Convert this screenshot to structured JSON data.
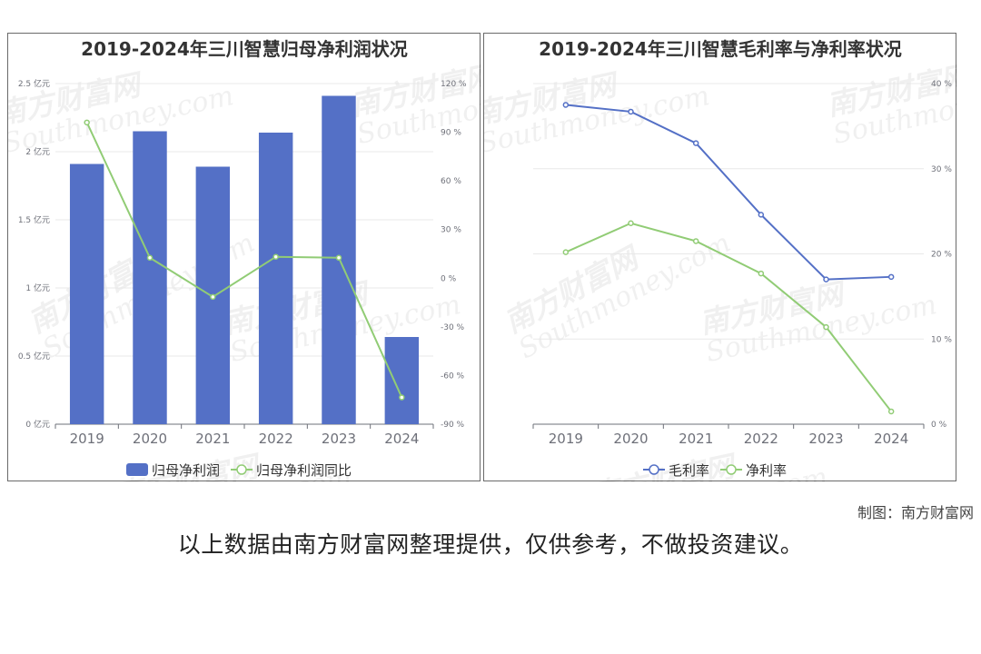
{
  "credit": "制图：南方财富网",
  "note": "以上数据由南方财富网整理提供，仅供参考，不做投资建议。",
  "watermark": {
    "cn": "南方财富网",
    "en": "Southmoney.com"
  },
  "colors": {
    "bar": "#5470c6",
    "line_green": "#91cc75",
    "line_blue": "#5470c6",
    "grid": "#e8e8e8",
    "axis": "#6e7079"
  },
  "chart_data": [
    {
      "type": "bar",
      "title": "2019-2024年三川智慧归母净利润状况",
      "categories": [
        "2019",
        "2020",
        "2021",
        "2022",
        "2023",
        "2024"
      ],
      "series": [
        {
          "name": "归母净利润",
          "type": "bar",
          "axis": "left",
          "values": [
            1.91,
            2.15,
            1.89,
            2.14,
            2.41,
            0.64
          ]
        },
        {
          "name": "归母净利润同比",
          "type": "line",
          "axis": "right",
          "values": [
            96,
            12.6,
            -11.5,
            13.2,
            12.6,
            -73.5
          ]
        }
      ],
      "y_left": {
        "ticks": [
          "0 亿元",
          "0.5 亿元",
          "1 亿元",
          "1.5 亿元",
          "2 亿元",
          "2.5 亿元"
        ],
        "ylim": [
          0,
          2.5
        ]
      },
      "y_right": {
        "ticks": [
          "-90 %",
          "-60 %",
          "-30 %",
          "0 %",
          "30 %",
          "60 %",
          "90 %",
          "120 %"
        ],
        "ylim": [
          -90,
          120
        ]
      },
      "legend": "bottom-center",
      "grid": true
    },
    {
      "type": "line",
      "title": "2019-2024年三川智慧毛利率与净利率状况",
      "categories": [
        "2019",
        "2020",
        "2021",
        "2022",
        "2023",
        "2024"
      ],
      "series": [
        {
          "name": "毛利率",
          "values": [
            37.5,
            36.7,
            33.0,
            24.6,
            17.0,
            17.3
          ]
        },
        {
          "name": "净利率",
          "values": [
            20.2,
            23.6,
            21.5,
            17.7,
            11.4,
            1.5
          ]
        }
      ],
      "y_right": {
        "ticks": [
          "0 %",
          "10 %",
          "20 %",
          "30 %",
          "40 %"
        ],
        "ylim": [
          0,
          40
        ]
      },
      "legend": "bottom-center",
      "grid": true
    }
  ]
}
